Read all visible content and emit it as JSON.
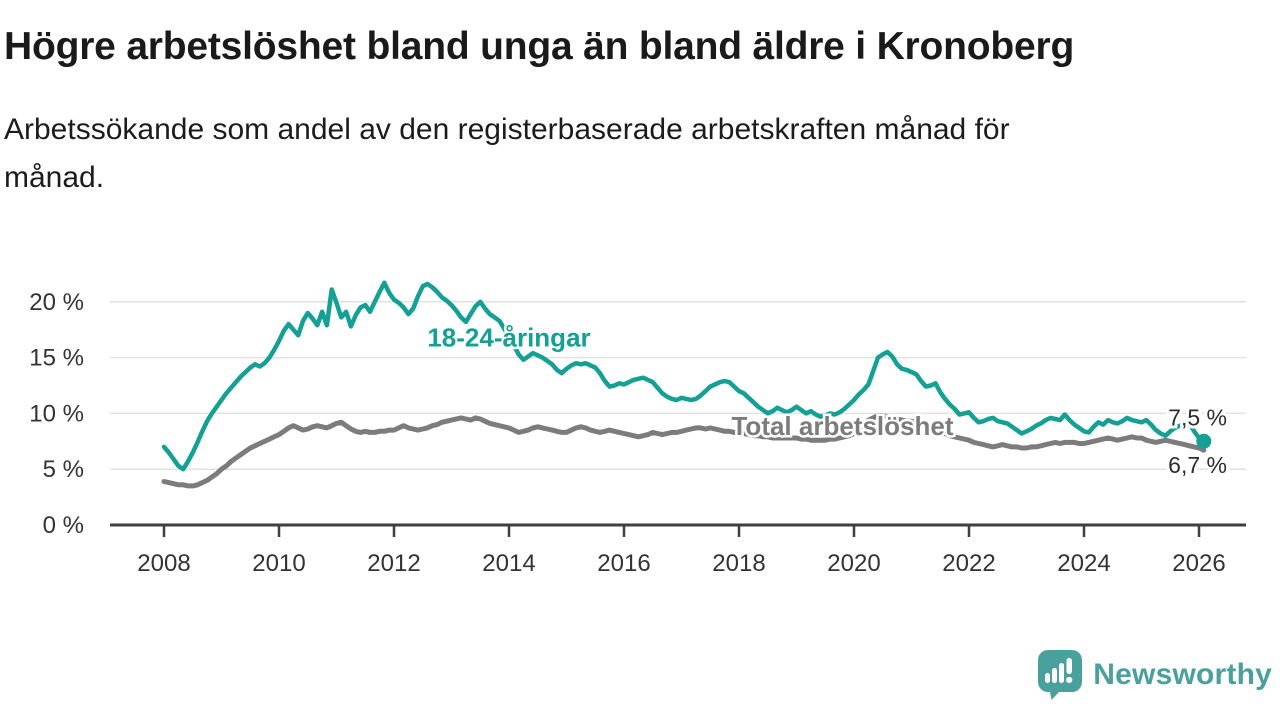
{
  "header": {
    "title": "Högre arbetslöshet bland unga än bland äldre i Kronoberg",
    "subtitle_line1": "Arbetssökande som andel av den registerbaserade arbetskraften månad för",
    "subtitle_line2": "månad."
  },
  "footer": {
    "brand": "Newsworthy"
  },
  "colors": {
    "brand": "#4aa09d",
    "axis": "#3f3f3f",
    "grid": "#e2e2e2",
    "tick_label": "#333333",
    "end_label": "#2d2d2d",
    "background": "#ffffff"
  },
  "chart_data": {
    "type": "line",
    "title": "Högre arbetslöshet bland unga än bland äldre i Kronoberg",
    "subtitle": "Arbetssökande som andel av den registerbaserade arbetskraften månad för månad.",
    "unit": "%",
    "grid": "horizontal",
    "legend": "inline-labels",
    "x_start": 2008.0,
    "x_step": 0.08333,
    "xlim": [
      2007.0,
      2026.8
    ],
    "ylim": [
      0,
      22.5
    ],
    "x_ticks": [
      2008,
      2010,
      2012,
      2014,
      2016,
      2018,
      2020,
      2022,
      2024,
      2026
    ],
    "y_ticks": [
      {
        "value": 0,
        "label": "0 %"
      },
      {
        "value": 5,
        "label": "5 %"
      },
      {
        "value": 10,
        "label": "10 %"
      },
      {
        "value": 15,
        "label": "15 %"
      },
      {
        "value": 20,
        "label": "20 %"
      }
    ],
    "series": [
      {
        "name": "18-24-åringar",
        "color": "#14a094",
        "label_anchor": {
          "x": 2014.0,
          "y": 16.8
        },
        "end_label": "7,5 %",
        "end_label_position": "above",
        "end_dot": true,
        "latest_value": 7.5,
        "values": [
          7.0,
          6.5,
          5.9,
          5.3,
          5.0,
          5.7,
          6.5,
          7.4,
          8.4,
          9.3,
          10.0,
          10.6,
          11.2,
          11.8,
          12.3,
          12.8,
          13.3,
          13.7,
          14.1,
          14.4,
          14.2,
          14.5,
          15.0,
          15.7,
          16.5,
          17.4,
          18.0,
          17.5,
          17.0,
          18.3,
          19.0,
          18.5,
          17.9,
          19.1,
          17.9,
          21.1,
          19.9,
          18.6,
          19.1,
          17.8,
          18.8,
          19.5,
          19.7,
          19.1,
          20.0,
          20.9,
          21.7,
          20.8,
          20.2,
          19.9,
          19.5,
          18.9,
          19.4,
          20.5,
          21.4,
          21.6,
          21.3,
          20.9,
          20.4,
          20.1,
          19.7,
          19.2,
          18.6,
          18.2,
          18.9,
          19.6,
          20.0,
          19.4,
          18.9,
          18.6,
          18.3,
          17.6,
          16.8,
          16.1,
          15.3,
          14.8,
          15.1,
          15.4,
          15.2,
          15.0,
          14.7,
          14.4,
          13.9,
          13.6,
          14.0,
          14.3,
          14.5,
          14.4,
          14.5,
          14.3,
          14.1,
          13.6,
          12.9,
          12.4,
          12.5,
          12.7,
          12.6,
          12.8,
          13.0,
          13.1,
          13.2,
          13.0,
          12.8,
          12.3,
          11.8,
          11.5,
          11.3,
          11.2,
          11.4,
          11.3,
          11.2,
          11.3,
          11.6,
          12.0,
          12.4,
          12.6,
          12.8,
          12.9,
          12.8,
          12.4,
          12.0,
          11.8,
          11.4,
          11.0,
          10.6,
          10.3,
          10.0,
          10.2,
          10.5,
          10.3,
          10.1,
          10.3,
          10.6,
          10.3,
          10.0,
          10.2,
          9.9,
          9.7,
          9.8,
          10.0,
          9.9,
          10.1,
          10.4,
          10.8,
          11.2,
          11.7,
          12.1,
          12.6,
          13.8,
          15.0,
          15.3,
          15.5,
          15.1,
          14.4,
          14.0,
          13.9,
          13.7,
          13.5,
          12.9,
          12.4,
          12.5,
          12.7,
          11.9,
          11.3,
          10.8,
          10.4,
          9.9,
          10.0,
          10.1,
          9.6,
          9.2,
          9.3,
          9.5,
          9.6,
          9.3,
          9.2,
          9.1,
          8.8,
          8.5,
          8.2,
          8.4,
          8.6,
          8.9,
          9.1,
          9.4,
          9.6,
          9.5,
          9.4,
          9.9,
          9.4,
          9.0,
          8.7,
          8.4,
          8.3,
          8.8,
          9.2,
          9.0,
          9.4,
          9.2,
          9.1,
          9.3,
          9.6,
          9.4,
          9.3,
          9.2,
          9.4,
          9.0,
          8.5,
          8.2,
          8.0,
          8.4,
          8.7,
          8.9,
          9.0,
          9.1,
          8.4,
          7.8,
          7.5
        ]
      },
      {
        "name": "Total arbetslöshet",
        "color": "#7c7c7c",
        "label_anchor": {
          "x": 2019.8,
          "y": 8.85
        },
        "end_label": "6,7 %",
        "end_label_position": "below",
        "end_dot": false,
        "latest_value": 6.7,
        "values": [
          3.9,
          3.8,
          3.7,
          3.6,
          3.6,
          3.5,
          3.5,
          3.6,
          3.8,
          4.0,
          4.3,
          4.6,
          5.0,
          5.3,
          5.7,
          6.0,
          6.3,
          6.6,
          6.9,
          7.1,
          7.3,
          7.5,
          7.7,
          7.9,
          8.1,
          8.4,
          8.7,
          8.9,
          8.7,
          8.5,
          8.6,
          8.8,
          8.9,
          8.8,
          8.7,
          8.9,
          9.1,
          9.2,
          8.9,
          8.6,
          8.4,
          8.3,
          8.4,
          8.3,
          8.3,
          8.4,
          8.4,
          8.5,
          8.5,
          8.7,
          8.9,
          8.7,
          8.6,
          8.5,
          8.6,
          8.7,
          8.9,
          9.0,
          9.2,
          9.3,
          9.4,
          9.5,
          9.6,
          9.5,
          9.4,
          9.6,
          9.5,
          9.3,
          9.1,
          9.0,
          8.9,
          8.8,
          8.7,
          8.5,
          8.3,
          8.4,
          8.5,
          8.7,
          8.8,
          8.7,
          8.6,
          8.5,
          8.4,
          8.3,
          8.3,
          8.5,
          8.7,
          8.8,
          8.7,
          8.5,
          8.4,
          8.3,
          8.4,
          8.5,
          8.4,
          8.3,
          8.2,
          8.1,
          8.0,
          7.9,
          8.0,
          8.1,
          8.3,
          8.2,
          8.1,
          8.2,
          8.3,
          8.3,
          8.4,
          8.5,
          8.6,
          8.7,
          8.7,
          8.6,
          8.7,
          8.6,
          8.5,
          8.4,
          8.4,
          8.3,
          8.3,
          8.2,
          8.1,
          8.0,
          8.0,
          7.9,
          7.9,
          7.8,
          7.8,
          7.8,
          7.8,
          7.8,
          7.8,
          7.7,
          7.7,
          7.6,
          7.6,
          7.6,
          7.6,
          7.7,
          7.7,
          7.8,
          7.9,
          8.0,
          8.2,
          8.6,
          9.0,
          9.4,
          9.6,
          9.8,
          9.8,
          9.7,
          9.6,
          9.5,
          9.4,
          9.3,
          9.3,
          9.2,
          9.0,
          8.9,
          8.8,
          8.6,
          8.4,
          8.2,
          8.0,
          7.9,
          7.8,
          7.7,
          7.6,
          7.4,
          7.3,
          7.2,
          7.1,
          7.0,
          7.1,
          7.2,
          7.1,
          7.0,
          7.0,
          6.9,
          6.9,
          7.0,
          7.0,
          7.1,
          7.2,
          7.3,
          7.4,
          7.3,
          7.4,
          7.4,
          7.4,
          7.3,
          7.3,
          7.4,
          7.5,
          7.6,
          7.7,
          7.8,
          7.7,
          7.6,
          7.7,
          7.8,
          7.9,
          7.8,
          7.8,
          7.6,
          7.5,
          7.4,
          7.5,
          7.6,
          7.5,
          7.4,
          7.3,
          7.2,
          7.1,
          7.0,
          6.9,
          6.7
        ]
      }
    ]
  }
}
